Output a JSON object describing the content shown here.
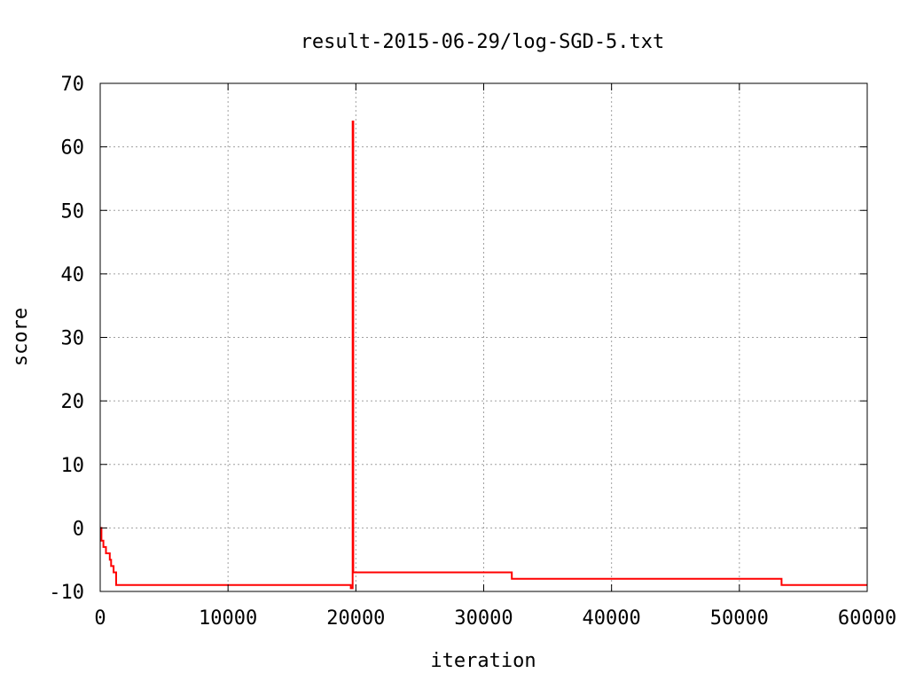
{
  "chart_data": {
    "type": "line",
    "title": "result-2015-06-29/log-SGD-5.txt",
    "xlabel": "iteration",
    "ylabel": "score",
    "xlim": [
      0,
      60000
    ],
    "ylim": [
      -10,
      70
    ],
    "xticks": [
      0,
      10000,
      20000,
      30000,
      40000,
      50000,
      60000
    ],
    "yticks": [
      -10,
      0,
      10,
      20,
      30,
      40,
      50,
      60,
      70
    ],
    "grid": true,
    "legend": "none",
    "series": [
      {
        "color": "#ff0000",
        "step": true,
        "x": [
          0,
          100,
          250,
          450,
          750,
          850,
          1050,
          1250,
          19500,
          19600,
          19750,
          19800,
          32200,
          53300,
          60000
        ],
        "y": [
          0,
          -2,
          -3,
          -4,
          -5,
          -6,
          -7,
          -9,
          -9,
          -9.5,
          64,
          -7,
          -8,
          -9,
          -9
        ]
      }
    ]
  }
}
